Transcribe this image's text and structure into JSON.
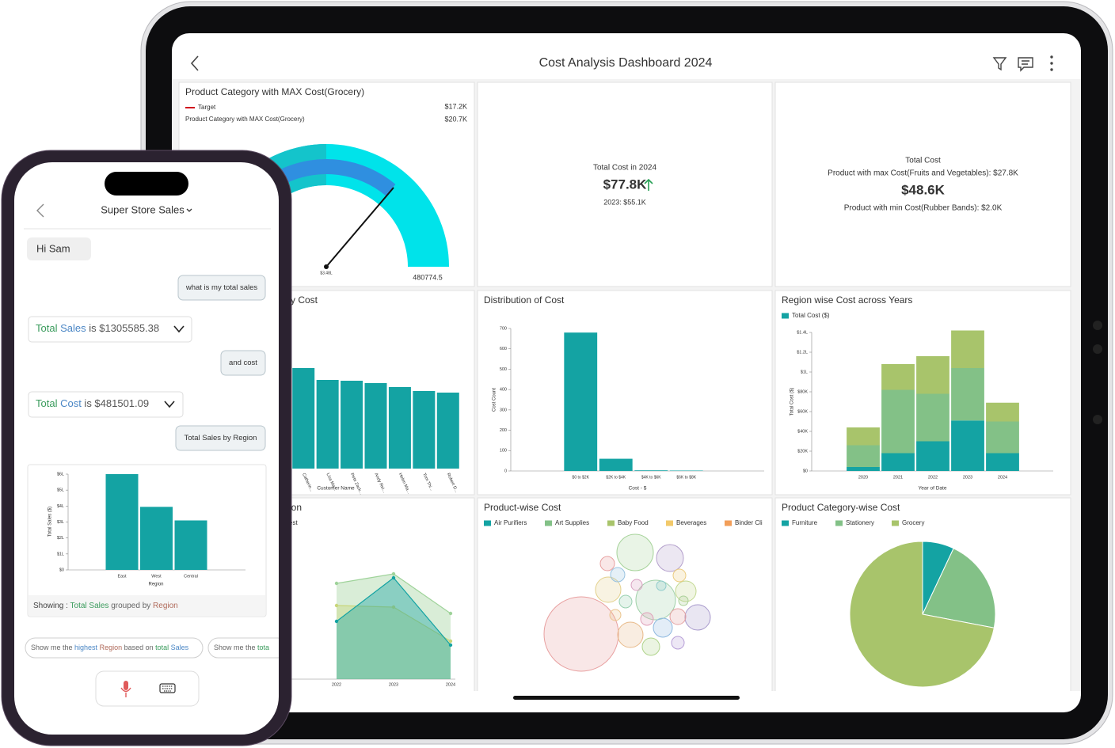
{
  "dashboard": {
    "title": "Cost Analysis Dashboard 2024",
    "panels": [
      {
        "type": "gauge",
        "title": "Product Category with MAX Cost(Grocery)",
        "legend": [
          {
            "name": "Target",
            "value": "$17.2K",
            "color": "#d0021b"
          },
          {
            "name": "Product Category with MAX Cost(Grocery)",
            "value": "$20.7K"
          }
        ],
        "min_label": "$3.48L",
        "max_label": "480774.5"
      },
      {
        "type": "kpi",
        "lines": [
          "Total Cost in 2024"
        ],
        "value": "$77.8K",
        "footer": [
          "2023: $55.1K"
        ]
      },
      {
        "type": "kpi",
        "lines": [
          "Total Cost",
          "Product with max Cost(Fruits and Vegetables): $27.8K"
        ],
        "value": "$48.6K",
        "footer": [
          "Product with min Cost(Rubber Bands): $2.0K"
        ]
      },
      {
        "type": "bar",
        "title": "y Cost",
        "x_label": "Customer Name",
        "color": "#14a3a3",
        "categories": [
          "Catherin...",
          "Lisa Ma...",
          "Pete Zack...",
          "Andy Rei...",
          "Helen Ma...",
          "Tom Thi...",
          "Robert D..."
        ],
        "values": [
          127,
          112,
          111,
          108,
          103,
          98,
          96
        ]
      },
      {
        "type": "bar",
        "title": "Distribution of Cost",
        "x_label": "Cost - $",
        "y_label": "Cost Count",
        "color": "#14a3a3",
        "categories": [
          "$0 to $2K",
          "$2K to $4K",
          "$4K to $6K",
          "$6K to $8K"
        ],
        "values": [
          680,
          60,
          3,
          2
        ],
        "ylim": [
          0,
          700
        ],
        "yticks": [
          0,
          100,
          200,
          300,
          400,
          500,
          600,
          700
        ]
      },
      {
        "type": "stacked_bar",
        "title": "Region wise Cost across Years",
        "x_label": "Year of Date",
        "y_label": "Total Cost ($)",
        "legend": [
          {
            "name": "Total Cost ($)",
            "color": "#14a3a3"
          }
        ],
        "categories": [
          "2020",
          "2021",
          "2022",
          "2023",
          "2024"
        ],
        "series": [
          {
            "color": "#14a3a3",
            "values": [
              4000,
              18000,
              30000,
              51000,
              18000
            ]
          },
          {
            "color": "#83c187",
            "values": [
              22000,
              64000,
              48000,
              53000,
              32000
            ]
          },
          {
            "color": "#a8c46b",
            "values": [
              18000,
              26000,
              38000,
              38000,
              19000
            ]
          }
        ],
        "ylim": [
          0,
          140000
        ],
        "yticks": [
          {
            "value": 0,
            "label": "$0"
          },
          {
            "value": 20000,
            "label": "$20K"
          },
          {
            "value": 40000,
            "label": "$40K"
          },
          {
            "value": 60000,
            "label": "$60K"
          },
          {
            "value": 80000,
            "label": "$80K"
          },
          {
            "value": 100000,
            "label": "$1L"
          },
          {
            "value": 120000,
            "label": "$1.2L"
          },
          {
            "value": 140000,
            "label": "$1.4L"
          }
        ]
      },
      {
        "type": "area",
        "title": "ion",
        "legend_text": "est",
        "categories": [
          "2022",
          "2023",
          "2024"
        ],
        "series": [
          {
            "color": "#9fd39a",
            "values": [
              121,
              133,
              83
            ]
          },
          {
            "color": "#c9d67a",
            "values": [
              93,
              91,
              48
            ]
          },
          {
            "color": "#14a3a3",
            "values": [
              73,
              128,
              43
            ]
          }
        ]
      },
      {
        "type": "bubble",
        "title": "Product-wise Cost",
        "legend": [
          {
            "name": "Air Purifiers",
            "color": "#14a3a3"
          },
          {
            "name": "Art Supplies",
            "color": "#83c187"
          },
          {
            "name": "Baby Food",
            "color": "#a8c46b"
          },
          {
            "name": "Beverages",
            "color": "#f2c96a"
          },
          {
            "name": "Binder Cli",
            "color": "#f29e59"
          }
        ],
        "values": [
          2209,
          529,
          289,
          625,
          256,
          256,
          121,
          256,
          100,
          144,
          169,
          81,
          81,
          49,
          64,
          49,
          64,
          64,
          36,
          64,
          36
        ],
        "colors": [
          "#e8a0a0",
          "#a6d39a",
          "#b4a0cc",
          "#9fd0a8",
          "#e3d08a",
          "#e8b988",
          "#b0d48c",
          "#a89acc",
          "#e3a0a0",
          "#8fb9e0",
          "#c2d890",
          "#e8a0a0",
          "#98c2e0",
          "#d8a0c0",
          "#98d0b0",
          "#eac48c",
          "#b8a0d8",
          "#eccc80",
          "#90cccc",
          "#e0a0b8",
          "#aad098"
        ]
      },
      {
        "type": "pie",
        "title": "Product Category-wise Cost",
        "categories": [
          "Furniture",
          "Stationery",
          "Grocery"
        ],
        "values": [
          7,
          21,
          72
        ],
        "colors": [
          "#14a3a3",
          "#83c187",
          "#a8c46b"
        ]
      }
    ]
  },
  "phone": {
    "title": "Super Store Sales",
    "greeting": "Hi Sam",
    "messages": [
      {
        "role": "user",
        "text": "what is my total sales"
      },
      {
        "role": "bot",
        "parts": [
          {
            "text": "Total",
            "color": "#3a9b5c"
          },
          {
            "text": " Sales",
            "color": "#4a86c5"
          },
          {
            "text": " is $1305585.38",
            "color": "#555555"
          }
        ]
      },
      {
        "role": "user",
        "text": "and cost"
      },
      {
        "role": "bot",
        "parts": [
          {
            "text": "Total",
            "color": "#3a9b5c"
          },
          {
            "text": " Cost",
            "color": "#4a86c5"
          },
          {
            "text": " is $481501.09",
            "color": "#555555"
          }
        ]
      },
      {
        "role": "user",
        "text": "Total Sales by Region"
      }
    ],
    "chart": {
      "type": "bar",
      "categories": [
        "East",
        "West",
        "Central"
      ],
      "values": [
        600000,
        395000,
        310000
      ],
      "color": "#14a3a3",
      "ylim": [
        0,
        600000
      ],
      "yticks": [
        {
          "value": 0,
          "label": "$0"
        },
        {
          "value": 100000,
          "label": "$1L"
        },
        {
          "value": 200000,
          "label": "$2L"
        },
        {
          "value": 300000,
          "label": "$3L"
        },
        {
          "value": 400000,
          "label": "$4L"
        },
        {
          "value": 500000,
          "label": "$5L"
        },
        {
          "value": 600000,
          "label": "$6L"
        }
      ],
      "x_label": "Region",
      "y_label": "Total Sales ($)"
    },
    "showing": [
      {
        "text": "Showing : ",
        "color": "#444444"
      },
      {
        "text": "Total Sales",
        "color": "#3a9b5c"
      },
      {
        "text": " grouped by ",
        "color": "#666666"
      },
      {
        "text": "Region",
        "color": "#b06a5a"
      }
    ],
    "suggestions": [
      {
        "parts": [
          {
            "text": "Show me the ",
            "color": "#666666"
          },
          {
            "text": "highest",
            "color": "#4a86c5"
          },
          {
            "text": " Region",
            "color": "#b06a5a"
          },
          {
            "text": " based on ",
            "color": "#666666"
          },
          {
            "text": "total",
            "color": "#3a9b5c"
          },
          {
            "text": " Sales",
            "color": "#4a86c5"
          }
        ]
      },
      {
        "parts": [
          {
            "text": "Show me the ",
            "color": "#666666"
          },
          {
            "text": "tota",
            "color": "#3a9b5c"
          }
        ]
      }
    ]
  }
}
